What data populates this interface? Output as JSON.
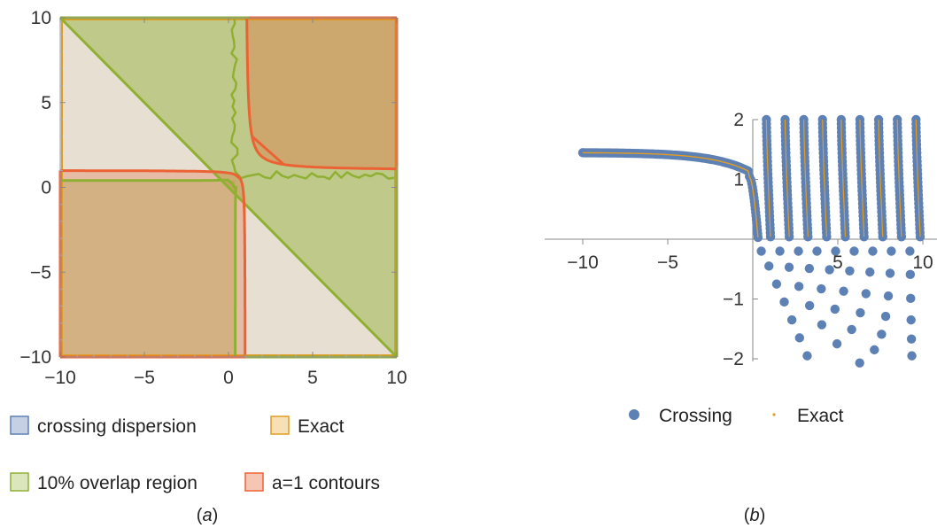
{
  "panels": {
    "a": {
      "caption_paren_open": "(",
      "caption_letter": "a",
      "caption_paren_close": ")"
    },
    "b": {
      "caption_paren_open": "(",
      "caption_letter": "b",
      "caption_paren_close": ")"
    }
  },
  "colors": {
    "crossing": "#5E81B5",
    "exact": "#E19C24",
    "overlap": "#8FB032",
    "contour": "#EB6235"
  },
  "chart_data": [
    {
      "type": "area",
      "panel": "a",
      "xlim": [
        -10,
        10
      ],
      "ylim": [
        -10,
        10
      ],
      "x_ticks": [
        "−10",
        "−5",
        "0",
        "5",
        "10"
      ],
      "y_ticks": [
        "−10",
        "−5",
        "0",
        "5",
        "10"
      ],
      "x_tick_values": [
        -10,
        -5,
        0,
        5,
        10
      ],
      "y_tick_values": [
        -10,
        -5,
        0,
        5,
        10
      ],
      "legend": [
        {
          "label": "crossing dispersion",
          "color": "#5E81B5"
        },
        {
          "label": "Exact",
          "color": "#E19C24"
        },
        {
          "label": "10% overlap region",
          "color": "#8FB032"
        },
        {
          "label": "a=1 contours",
          "color": "#EB6235"
        }
      ],
      "regions": {
        "lower_left_contour_corner": [
          1,
          1
        ],
        "upper_right_contour_corner": [
          1,
          1
        ],
        "overlap_inner_level": 0.4,
        "diagonal": [
          [
            -10,
            10
          ],
          [
            10,
            -10
          ]
        ]
      }
    },
    {
      "type": "scatter",
      "panel": "b",
      "xlim": [
        -10,
        10
      ],
      "ylim": [
        -2,
        2
      ],
      "x_ticks": [
        "−10",
        "−5",
        "5",
        "10"
      ],
      "x_tick_values": [
        -10,
        -5,
        5,
        10
      ],
      "y_ticks": [
        "−2",
        "−1",
        "1",
        "2"
      ],
      "y_tick_values": [
        -2,
        -1,
        1,
        2
      ],
      "legend": [
        {
          "label": "Crossing",
          "color": "#5E81B5",
          "marker": "dot"
        },
        {
          "label": "Exact",
          "color": "#E19C24",
          "marker": "small-dot"
        }
      ],
      "branches": {
        "first_branch": {
          "x_start": -10,
          "y_start": 1.4,
          "x_end": 0.3,
          "y_end": 0
        },
        "vertical_branches_x": [
          0.9,
          2.0,
          3.1,
          4.2,
          5.3,
          6.4,
          7.5,
          8.6,
          9.7
        ],
        "lower_dot_rows_y": [
          -0.2,
          -0.45,
          -0.75,
          -1.05,
          -1.35,
          -1.65,
          -1.95
        ]
      }
    }
  ]
}
